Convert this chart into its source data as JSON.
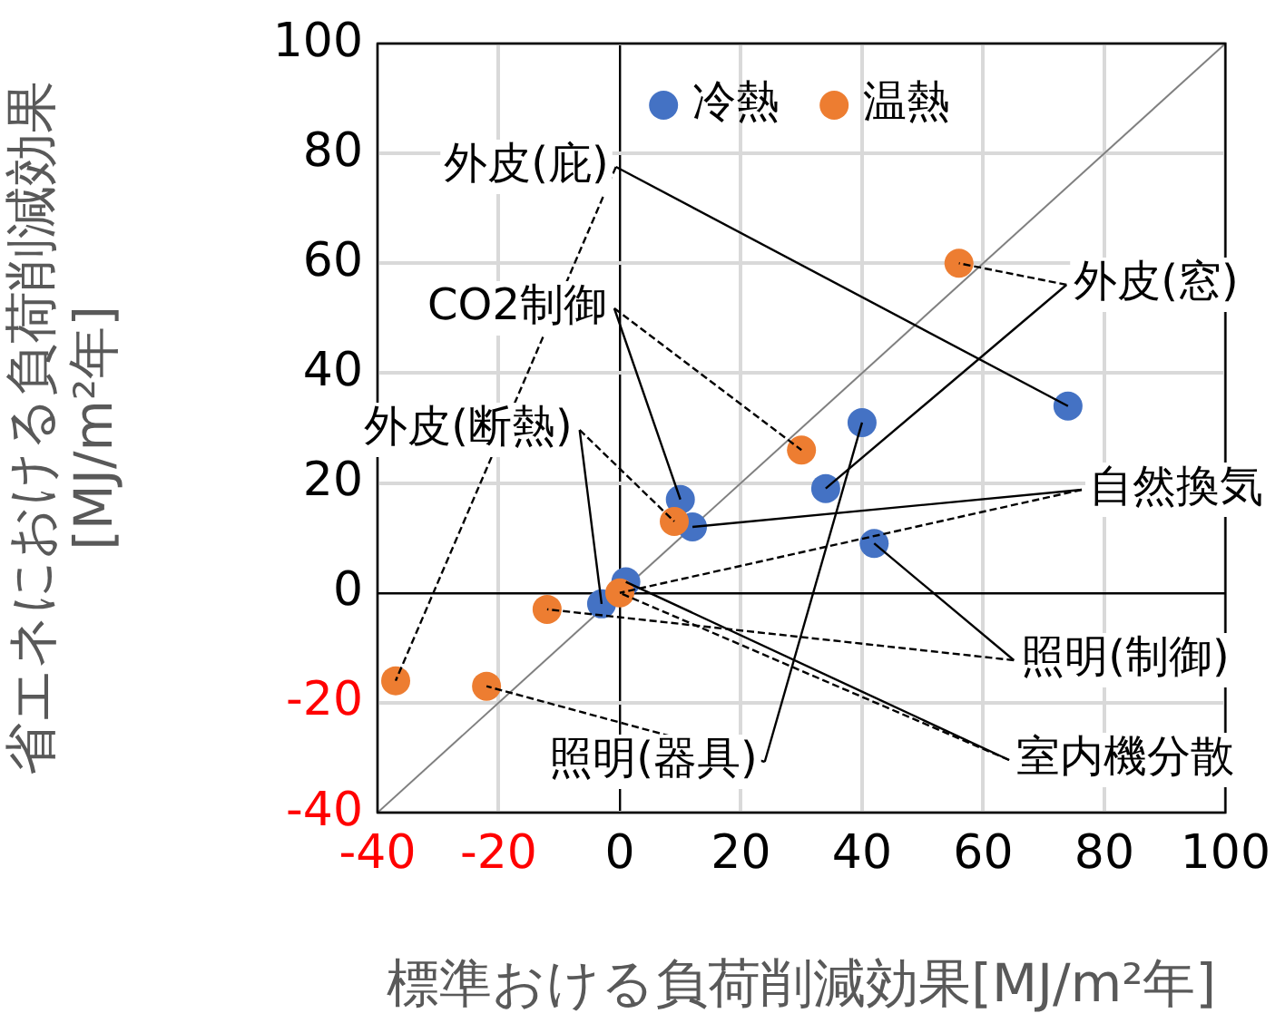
{
  "chart_data": {
    "type": "scatter",
    "xlabel": "標準おける負荷削減効果[MJ/m²年]",
    "ylabel": "省エネにおける負荷削減効果\n[MJ/m²年]",
    "xlim": [
      -40,
      100
    ],
    "xticks": [
      -40,
      -20,
      0,
      20,
      40,
      60,
      80,
      100
    ],
    "ylim": [
      -40,
      100
    ],
    "yticks": [
      -40,
      -20,
      0,
      20,
      40,
      60,
      80,
      100
    ],
    "grid": true,
    "legend": "top",
    "marker": "circle",
    "series": [
      {
        "name": "冷熱",
        "color": "#4472c4",
        "x": [
          74,
          40,
          34,
          42,
          10,
          12,
          1,
          -3
        ],
        "values": [
          34,
          31,
          19,
          9,
          17,
          12,
          2,
          -2
        ]
      },
      {
        "name": "温熱",
        "color": "#ed7d31",
        "x": [
          56,
          30,
          9,
          0,
          -12,
          -37,
          -22
        ],
        "values": [
          60,
          26,
          13,
          0,
          -3,
          -16,
          -17
        ]
      },
      {
        "type": "line",
        "color": "#808080",
        "x": [
          -40,
          100
        ],
        "values": [
          -40,
          100
        ],
        "marker": "none"
      }
    ],
    "annotations": [
      {
        "text": "外皮(庇)",
        "x": 74,
        "y": 34
      },
      {
        "text": "外皮(窓)",
        "x": 34,
        "y": 19
      },
      {
        "text": "CO2制御",
        "x": 10,
        "y": 17
      },
      {
        "text": "外皮(断熱)",
        "x": -3,
        "y": -2
      },
      {
        "text": "自然換気",
        "x": 12,
        "y": 12
      },
      {
        "text": "照明(制御)",
        "x": 42,
        "y": 9
      },
      {
        "text": "照明(器具)",
        "x": 40,
        "y": 31
      },
      {
        "text": "室内機分散",
        "x": 1,
        "y": 2
      }
    ]
  }
}
